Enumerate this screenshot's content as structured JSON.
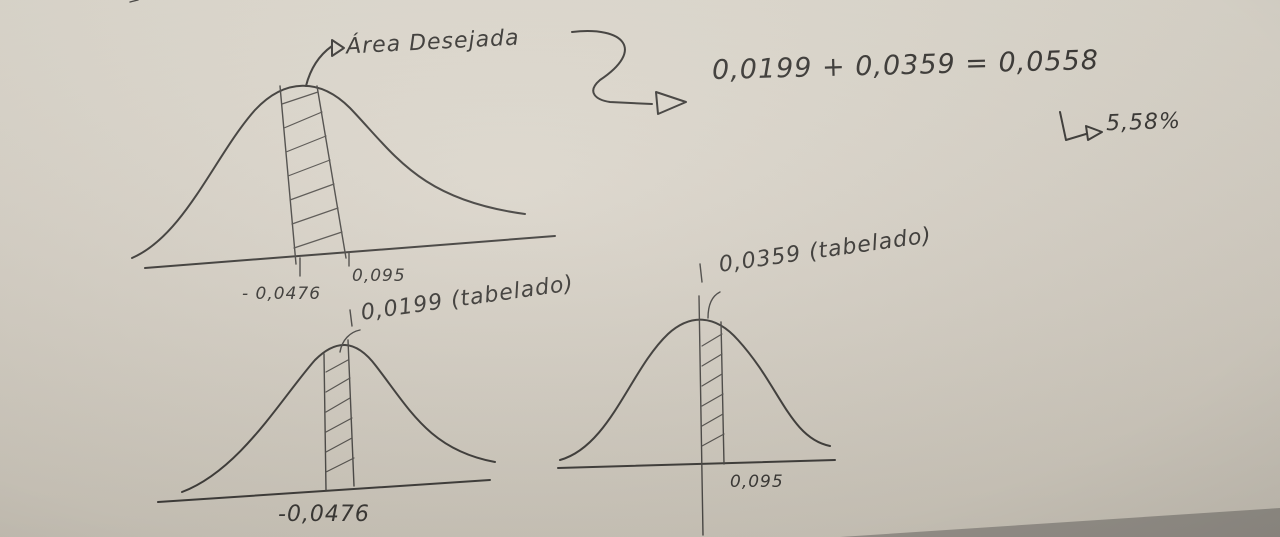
{
  "top_diagram": {
    "label": "Área Desejada",
    "tick_left": "- 0,0476",
    "tick_right": "0,095"
  },
  "equation": {
    "sum": "0,0199 + 0,0359 = 0,0558",
    "percent": "5,58%"
  },
  "bottom_left_diagram": {
    "annotation": "0,0199 (tabelado)",
    "tick": "-0,0476"
  },
  "bottom_right_diagram": {
    "annotation": "0,0359 (tabelado)",
    "tick": "0,095"
  }
}
